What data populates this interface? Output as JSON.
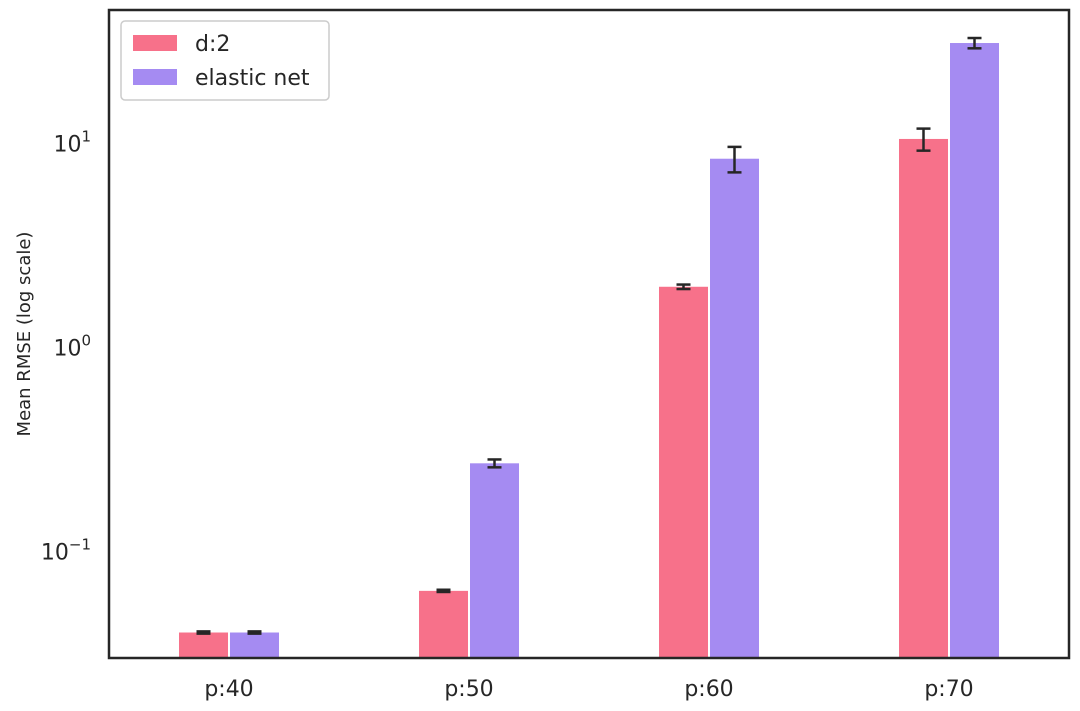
{
  "chart_data": {
    "type": "bar",
    "title": "",
    "xlabel": "",
    "ylabel": "Mean RMSE (log scale)",
    "yscale": "log",
    "ylim": [
      0.03,
      45
    ],
    "grid": false,
    "legend_position": "top-left",
    "categories": [
      "p:40",
      "p:50",
      "p:60",
      "p:70"
    ],
    "y_ticks": [
      {
        "value": 0.1,
        "base": "10",
        "exponent": "−1"
      },
      {
        "value": 1,
        "base": "10",
        "exponent": "0"
      },
      {
        "value": 10,
        "base": "10",
        "exponent": "1"
      }
    ],
    "series": [
      {
        "name": "d:2",
        "color": "#f7718a",
        "values": [
          0.04,
          0.064,
          1.98,
          10.5
        ],
        "errors": [
          0.0005,
          0.0008,
          0.05,
          1.3
        ]
      },
      {
        "name": "elastic net",
        "color": "#a58bf2",
        "values": [
          0.04,
          0.27,
          8.4,
          31.0
        ],
        "errors": [
          0.0005,
          0.012,
          1.2,
          1.8
        ]
      }
    ]
  }
}
